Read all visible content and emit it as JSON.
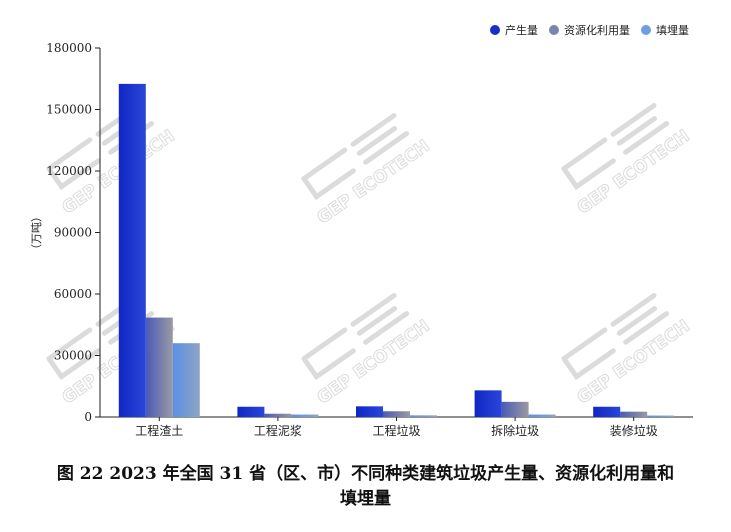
{
  "chart_data": {
    "type": "bar",
    "ylabel": "（万吨）",
    "ylim": [
      0,
      180000
    ],
    "yticks": [
      0,
      30000,
      60000,
      90000,
      120000,
      150000,
      180000
    ],
    "categories": [
      "工程渣土",
      "工程泥浆",
      "工程垃圾",
      "拆除垃圾",
      "装修垃圾"
    ],
    "series": [
      {
        "name": "产生量",
        "values": [
          162500,
          5000,
          5200,
          13000,
          5000
        ]
      },
      {
        "name": "资源化利用量",
        "values": [
          48500,
          1600,
          2800,
          7400,
          2600
        ]
      },
      {
        "name": "填埋量",
        "values": [
          36000,
          1200,
          800,
          1200,
          700
        ]
      }
    ],
    "legend_position": "top-right",
    "grid": false
  },
  "colors": {
    "series": [
      "#1530c8",
      "#7a84ae",
      "#6d9ee6"
    ]
  },
  "watermark": {
    "text": "GEP ECOTECH"
  },
  "caption": {
    "line1": "图 22 2023 年全国 31 省（区、市）不同种类建筑垃圾产生量、资源化利用量和",
    "line2": "填埋量"
  }
}
